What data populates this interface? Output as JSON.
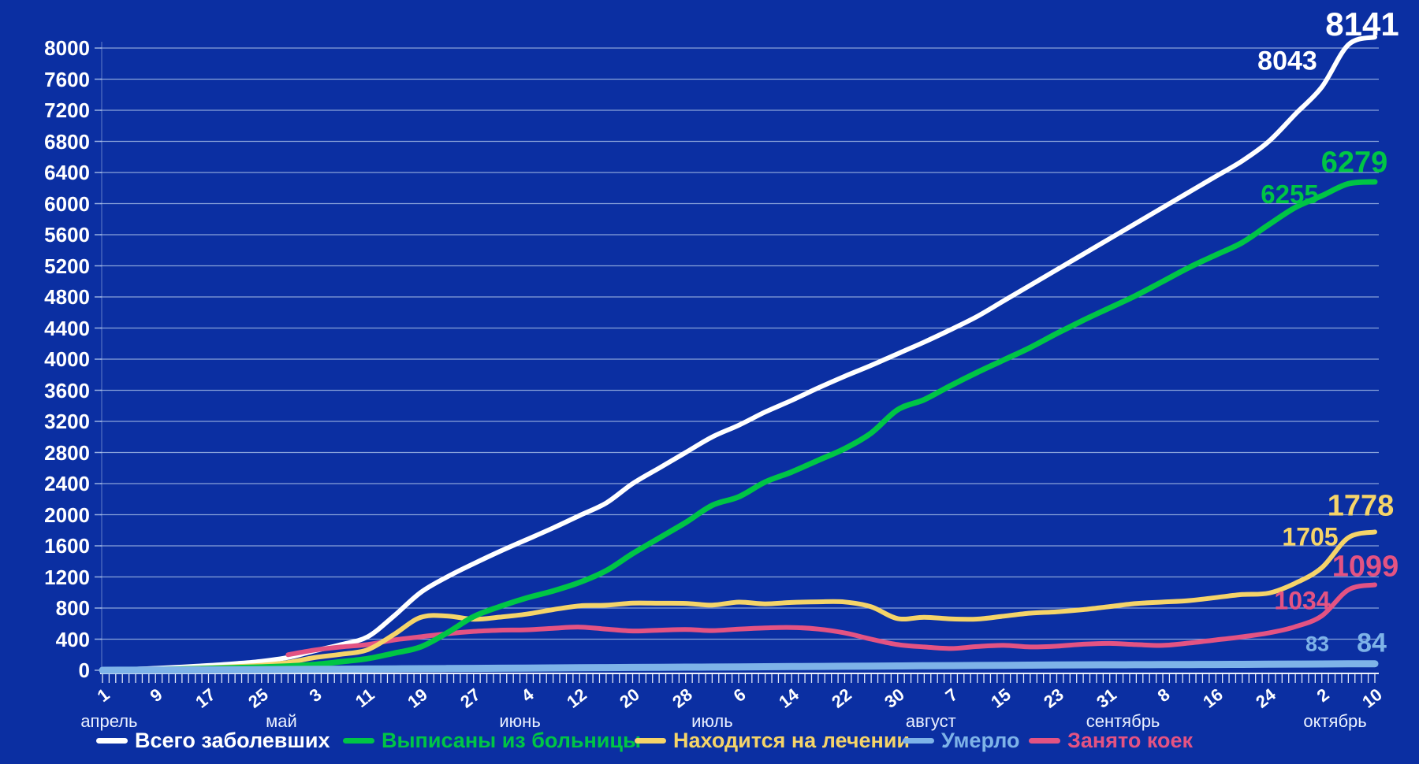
{
  "chart_data": {
    "type": "line",
    "title": "",
    "grid": true,
    "legend_position": "bottom",
    "y_axis": {
      "min": 0,
      "max": 8000,
      "step": 400,
      "ticks": [
        0,
        400,
        800,
        1200,
        1600,
        2000,
        2400,
        2800,
        3200,
        3600,
        4000,
        4400,
        4800,
        5200,
        5600,
        6000,
        6400,
        6800,
        7200,
        7600,
        8000
      ]
    },
    "x_axis": {
      "day_span": 192,
      "sample_step_days": 4,
      "tick_labels": [
        {
          "day": 0,
          "label": "1"
        },
        {
          "day": 8,
          "label": "9"
        },
        {
          "day": 16,
          "label": "17"
        },
        {
          "day": 24,
          "label": "25"
        },
        {
          "day": 32,
          "label": "3"
        },
        {
          "day": 40,
          "label": "11"
        },
        {
          "day": 48,
          "label": "19"
        },
        {
          "day": 56,
          "label": "27"
        },
        {
          "day": 64,
          "label": "4"
        },
        {
          "day": 72,
          "label": "12"
        },
        {
          "day": 80,
          "label": "20"
        },
        {
          "day": 88,
          "label": "28"
        },
        {
          "day": 96,
          "label": "6"
        },
        {
          "day": 104,
          "label": "14"
        },
        {
          "day": 112,
          "label": "22"
        },
        {
          "day": 120,
          "label": "30"
        },
        {
          "day": 128,
          "label": "7"
        },
        {
          "day": 136,
          "label": "15"
        },
        {
          "day": 144,
          "label": "23"
        },
        {
          "day": 152,
          "label": "31"
        },
        {
          "day": 160,
          "label": "8"
        },
        {
          "day": 168,
          "label": "16"
        },
        {
          "day": 176,
          "label": "24"
        },
        {
          "day": 184,
          "label": "2"
        },
        {
          "day": 192,
          "label": "10"
        }
      ],
      "month_labels": [
        {
          "day": 1,
          "label": "апрель"
        },
        {
          "day": 27,
          "label": "май"
        },
        {
          "day": 63,
          "label": "июнь"
        },
        {
          "day": 92,
          "label": "июль"
        },
        {
          "day": 125,
          "label": "август"
        },
        {
          "day": 154,
          "label": "сентябрь"
        },
        {
          "day": 186,
          "label": "октябрь"
        }
      ]
    },
    "series": [
      {
        "name": "Всего заболевших",
        "color": "#FFFFFF",
        "last_value": 8141,
        "prev_value": 8043,
        "values": [
          4,
          12,
          25,
          42,
          62,
          85,
          115,
          165,
          250,
          330,
          430,
          700,
          1000,
          1200,
          1370,
          1530,
          1680,
          1830,
          1990,
          2150,
          2400,
          2600,
          2800,
          3000,
          3150,
          3320,
          3470,
          3630,
          3780,
          3920,
          4070,
          4220,
          4380,
          4550,
          4750,
          4950,
          5150,
          5350,
          5550,
          5750,
          5950,
          6150,
          6350,
          6550,
          6800,
          7150,
          7500,
          8043,
          8141
        ]
      },
      {
        "name": "Выписаны из больницы",
        "color": "#00C545",
        "last_value": 6279,
        "prev_value": 6255,
        "values": [
          2,
          5,
          10,
          16,
          24,
          32,
          42,
          55,
          75,
          110,
          150,
          220,
          300,
          480,
          690,
          820,
          930,
          1020,
          1130,
          1280,
          1500,
          1700,
          1900,
          2120,
          2230,
          2420,
          2550,
          2700,
          2850,
          3050,
          3350,
          3480,
          3660,
          3830,
          3990,
          4150,
          4330,
          4500,
          4660,
          4820,
          5000,
          5180,
          5340,
          5500,
          5730,
          5950,
          6100,
          6255,
          6279
        ]
      },
      {
        "name": "Находится на лечении",
        "color": "#F5D469",
        "last_value": 1778,
        "prev_value": 1705,
        "values": [
          2,
          6,
          13,
          23,
          33,
          47,
          65,
          100,
          163,
          206,
          264,
          462,
          680,
          698,
          656,
          684,
          722,
          780,
          828,
          836,
          864,
          862,
          860,
          838,
          876,
          854,
          872,
          880,
          878,
          816,
          664,
          682,
          660,
          658,
          696,
          734,
          752,
          780,
          819,
          858,
          877,
          896,
          935,
          974,
          992,
          1120,
          1319,
          1705,
          1778
        ]
      },
      {
        "name": "Умерло",
        "color": "#7EB3E8",
        "last_value": 84,
        "prev_value": 83,
        "values": [
          0,
          1,
          2,
          3,
          5,
          6,
          8,
          10,
          12,
          14,
          16,
          18,
          20,
          22,
          24,
          26,
          28,
          30,
          32,
          34,
          36,
          38,
          40,
          42,
          44,
          46,
          48,
          50,
          52,
          54,
          56,
          58,
          60,
          62,
          64,
          66,
          68,
          70,
          71,
          72,
          73,
          74,
          75,
          76,
          78,
          80,
          81,
          83,
          84
        ]
      },
      {
        "name": "Занято коек",
        "color": "#E35383",
        "last_value": 1099,
        "prev_value": 1034,
        "values": [
          null,
          null,
          null,
          null,
          null,
          null,
          null,
          200,
          260,
          300,
          330,
          390,
          430,
          470,
          500,
          515,
          520,
          540,
          555,
          530,
          505,
          515,
          525,
          510,
          530,
          545,
          550,
          530,
          480,
          400,
          330,
          300,
          280,
          305,
          320,
          300,
          310,
          335,
          345,
          330,
          320,
          350,
          390,
          430,
          480,
          560,
          700,
          1034,
          1099
        ]
      }
    ]
  },
  "legend": {
    "items": [
      "Всего заболевших",
      "Выписаны из больницы",
      "Находится на лечении",
      "Умерло",
      "Занято коек"
    ]
  },
  "colors": {
    "background": "#0B2FA2",
    "gridline": "#A9BFE8",
    "axis": "#EDF2FC"
  }
}
